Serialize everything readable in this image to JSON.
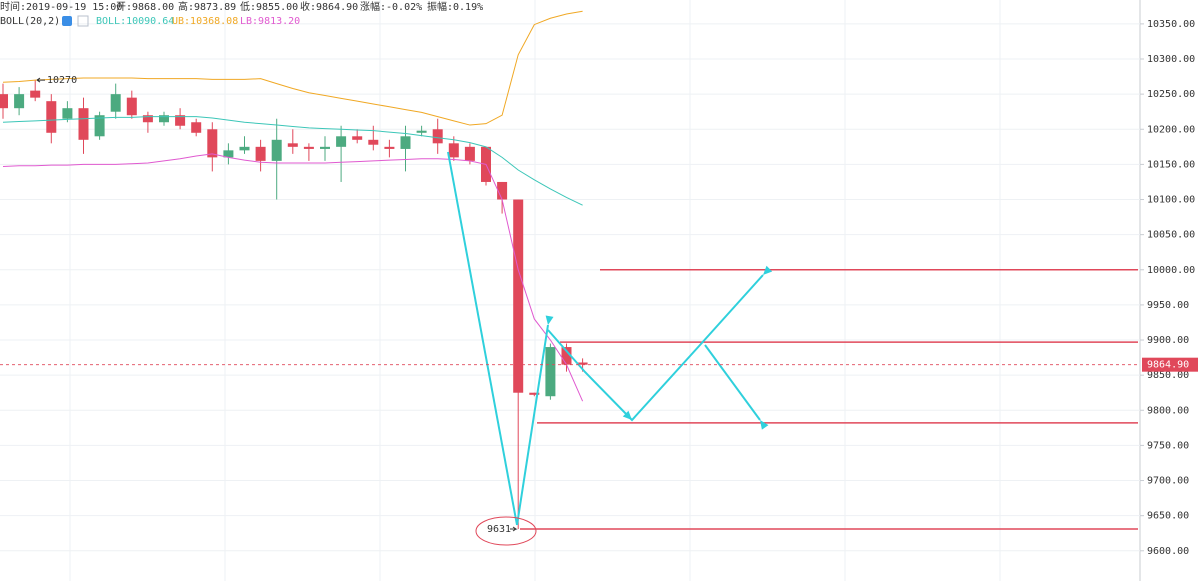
{
  "chart_data": {
    "type": "candlestick",
    "header": [
      "时间:2019-09-19 15:00",
      "开:9868.00",
      "高:9873.89",
      "低:9855.00",
      "收:9864.90",
      "涨幅:-0.02%",
      "振幅:0.19%"
    ],
    "indicator_legend": [
      {
        "label": "BOLL(20,2)",
        "color": "#333333"
      },
      {
        "label": "BOLL:10090.64",
        "color": "#3cc6b8"
      },
      {
        "label": "UB:10368.08",
        "color": "#f0a824"
      },
      {
        "label": "LB:9813.20",
        "color": "#e05ad0"
      }
    ],
    "up_color": "#4caa80",
    "down_color": "#e0485a",
    "open": [
      10250,
      10230,
      10255,
      10240,
      10215,
      10230,
      10190,
      10225,
      10245,
      10220,
      10210,
      10220,
      10210,
      10200,
      10160,
      10170,
      10175,
      10155,
      10180,
      10175,
      10172,
      10175,
      10190,
      10185,
      10175,
      10172,
      10195,
      10200,
      10180,
      10175,
      10175,
      10125,
      10100,
      9825,
      9820,
      9890,
      9868
    ],
    "high": [
      10265,
      10260,
      10270,
      10250,
      10240,
      10245,
      10225,
      10265,
      10255,
      10225,
      10225,
      10230,
      10215,
      10210,
      10180,
      10190,
      10185,
      10215,
      10200,
      10180,
      10190,
      10205,
      10200,
      10205,
      10185,
      10205,
      10205,
      10215,
      10190,
      10180,
      10175,
      10125,
      10100,
      9825,
      9895,
      9895,
      9873.89
    ],
    "low": [
      10215,
      10220,
      10240,
      10180,
      10210,
      10165,
      10185,
      10215,
      10215,
      10195,
      10205,
      10200,
      10190,
      10140,
      10150,
      10165,
      10140,
      10100,
      10165,
      10155,
      10155,
      10125,
      10180,
      10170,
      10160,
      10140,
      10190,
      10165,
      10155,
      10150,
      10120,
      10080,
      9631,
      9820,
      9815,
      9855,
      9855
    ],
    "close": [
      10230,
      10250,
      10245,
      10195,
      10230,
      10185,
      10220,
      10250,
      10220,
      10210,
      10220,
      10205,
      10195,
      10160,
      10170,
      10175,
      10155,
      10185,
      10175,
      10172,
      10175,
      10190,
      10185,
      10178,
      10172,
      10190,
      10198,
      10180,
      10160,
      10155,
      10125,
      10100,
      9825,
      9822,
      9890,
      9865,
      9864.9
    ],
    "series": [
      {
        "color": "#3cc6b8",
        "values": [
          10210,
          10211,
          10212,
          10213,
          10214,
          10215,
          10216,
          10217,
          10217,
          10218,
          10218,
          10218,
          10218,
          10216,
          10213,
          10210,
          10208,
          10206,
          10204,
          10202,
          10201,
          10200,
          10199,
          10198,
          10196,
          10194,
          10191,
          10188,
          10185,
          10181,
          10175,
          10160,
          10142,
          10128,
          10115,
          10103,
          10092
        ]
      },
      {
        "color": "#f0a824",
        "values": [
          10267,
          10268,
          10270,
          10271,
          10272,
          10273,
          10273,
          10273,
          10273,
          10272,
          10272,
          10272,
          10272,
          10271,
          10271,
          10271,
          10272,
          10265,
          10258,
          10252,
          10248,
          10244,
          10240,
          10236,
          10232,
          10228,
          10224,
          10218,
          10212,
          10206,
          10208,
          10220,
          10306,
          10349,
          10358,
          10364,
          10368
        ]
      },
      {
        "color": "#e05ad0",
        "values": [
          10147,
          10148,
          10148,
          10149,
          10149,
          10150,
          10150,
          10150,
          10151,
          10152,
          10155,
          10158,
          10162,
          10165,
          10160,
          10156,
          10153,
          10152,
          10152,
          10152,
          10152,
          10153,
          10154,
          10155,
          10156,
          10157,
          10158,
          10158,
          10157,
          10155,
          10150,
          10100,
          10000,
          9930,
          9900,
          9865,
          9813
        ]
      }
    ],
    "ylim": [
      9557,
      10384
    ],
    "yticks": [
      {
        "value": 9600,
        "label": "9600.00"
      },
      {
        "value": 9650,
        "label": "9650.00"
      },
      {
        "value": 9700,
        "label": "9700.00"
      },
      {
        "value": 9750,
        "label": "9750.00"
      },
      {
        "value": 9800,
        "label": "9800.00"
      },
      {
        "value": 9850,
        "label": "9850.00"
      },
      {
        "value": 9900,
        "label": "9900.00"
      },
      {
        "value": 9950,
        "label": "9950.00"
      },
      {
        "value": 10000,
        "label": "10000.00"
      },
      {
        "value": 10050,
        "label": "10050.00"
      },
      {
        "value": 10100,
        "label": "10100.00"
      },
      {
        "value": 10150,
        "label": "10150.00"
      },
      {
        "value": 10200,
        "label": "10200.00"
      },
      {
        "value": 10250,
        "label": "10250.00"
      },
      {
        "value": 10300,
        "label": "10300.00"
      },
      {
        "value": 10350,
        "label": "10350.00"
      }
    ],
    "grid": true,
    "last_price": {
      "value": 9864.9,
      "label": "9864.90"
    },
    "high_marker": 10270,
    "low_marker": 9631,
    "levels": [
      10000,
      9897,
      9782,
      9631
    ]
  }
}
